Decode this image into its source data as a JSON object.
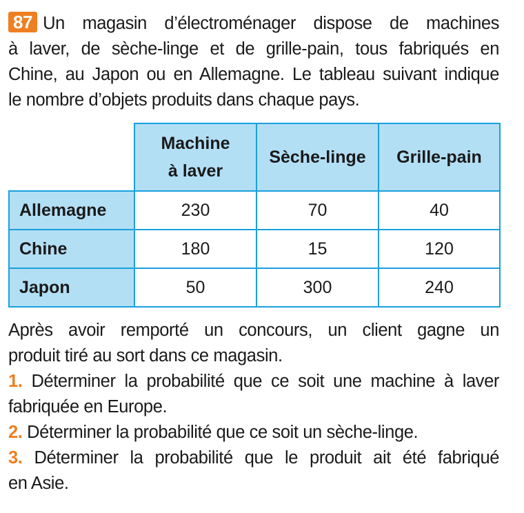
{
  "exercise_number": "87",
  "intro_lines": [
    "Un magasin d’électroménager dispose de machines",
    "à laver, de sèche-linge et de grille-pain, tous fabriqués en",
    "Chine, au Japon ou en Allemagne. Le tableau suivant indique",
    "le nombre d’objets produits dans chaque pays."
  ],
  "table": {
    "columns": [
      "Machine à laver",
      "Sèche-linge",
      "Grille-pain"
    ],
    "rows": [
      {
        "label": "Allemagne",
        "values": [
          "230",
          "70",
          "40"
        ]
      },
      {
        "label": "Chine",
        "values": [
          "180",
          "15",
          "120"
        ]
      },
      {
        "label": "Japon",
        "values": [
          "50",
          "300",
          "240"
        ]
      }
    ]
  },
  "context_lines": [
    "Après avoir remporté un concours, un client gagne un",
    "produit tiré au sort dans ce magasin."
  ],
  "questions": [
    {
      "number": "1.",
      "lines": [
        "Déterminer la probabilité que ce soit une machine à laver",
        "fabriquée en Europe."
      ]
    },
    {
      "number": "2.",
      "lines": [
        "Déterminer la probabilité que ce soit un sèche-linge."
      ]
    },
    {
      "number": "3.",
      "lines": [
        "Déterminer la probabilité que le produit ait été fabriqué",
        "en Asie."
      ]
    }
  ],
  "colors": {
    "accent": "#ee7f22",
    "table_fill": "#b3dff5",
    "table_border": "#1aa0dc"
  }
}
